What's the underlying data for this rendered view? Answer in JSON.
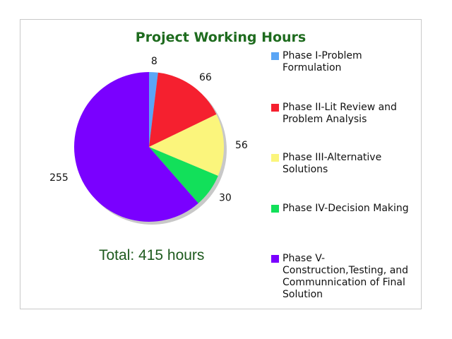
{
  "chart_data": {
    "type": "pie",
    "title": "Project Working Hours",
    "categories": [
      "Phase I-Problem Formulation",
      "Phase II-Lit Review and Problem Analysis",
      "Phase III-Alternative Solutions",
      "Phase IV-Decision Making",
      "Phase V-Construction,Testing, and Communnication of Final Solution"
    ],
    "values": [
      8,
      66,
      56,
      30,
      255
    ],
    "colors": [
      "#5aa5f5",
      "#f5202f",
      "#fbf57c",
      "#12e05a",
      "#7a00ff"
    ],
    "legend_position": "right",
    "annotation": "Total: 415 hours"
  },
  "legend": [
    {
      "label": "Phase I-Problem Formulation",
      "color": "#5aa5f5"
    },
    {
      "label": "Phase II-Lit Review and Problem Analysis",
      "color": "#f5202f"
    },
    {
      "label": "Phase III-Alternative Solutions",
      "color": "#fbf57c"
    },
    {
      "label": "Phase IV-Decision Making",
      "color": "#12e05a"
    },
    {
      "label": "Phase V-Construction,Testing, and Communnication of Final Solution",
      "color": "#7a00ff"
    }
  ]
}
